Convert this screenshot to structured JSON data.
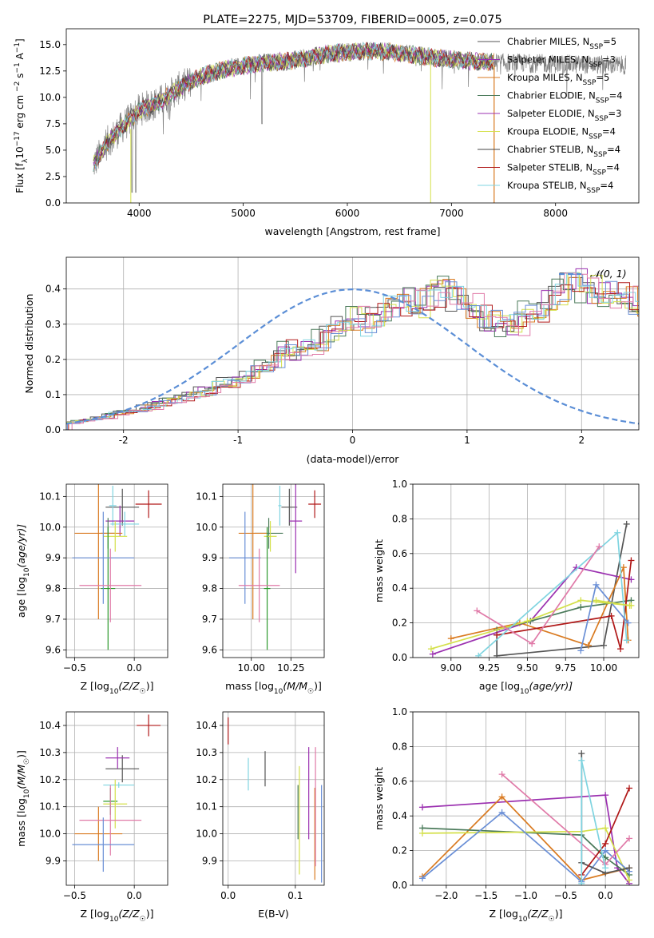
{
  "chart_data": [
    {
      "id": "spectrum",
      "type": "line",
      "title": "PLATE=2275, MJD=53709, FIBERID=0005, z=0.075",
      "xlabel": "wavelength [Angstrom, rest frame]",
      "ylabel": "Flux [f",
      "ylabel_sub": "λ",
      "ylabel_rest": "10",
      "ylabel_sup": "−17",
      "ylabel_units": "erg cm",
      "ylabel_units_sup": "−2",
      "ylabel_s": "s",
      "ylabel_s_sup": "−1",
      "ylabel_A": "A",
      "ylabel_A_sup": "−1",
      "ylabel_end": "]",
      "xlim": [
        3300,
        8800
      ],
      "ylim": [
        0,
        16.5
      ],
      "xticks": [
        4000,
        5000,
        6000,
        7000,
        8000
      ],
      "yticks": [
        0.0,
        2.5,
        5.0,
        7.5,
        10.0,
        12.5,
        15.0
      ],
      "continuum": [
        [
          3560,
          3.6
        ],
        [
          3700,
          5.8
        ],
        [
          3900,
          7.8
        ],
        [
          4000,
          8.8
        ],
        [
          4200,
          9.6
        ],
        [
          4400,
          11.0
        ],
        [
          4600,
          12.0
        ],
        [
          4800,
          12.6
        ],
        [
          5000,
          13.0
        ],
        [
          5200,
          13.3
        ],
        [
          5400,
          13.4
        ],
        [
          5600,
          13.7
        ],
        [
          5800,
          14.1
        ],
        [
          6000,
          14.3
        ],
        [
          6200,
          14.4
        ],
        [
          6400,
          14.3
        ],
        [
          6600,
          14.1
        ],
        [
          6800,
          13.8
        ],
        [
          7000,
          13.6
        ],
        [
          7200,
          13.4
        ],
        [
          7400,
          13.3
        ]
      ],
      "data_end_x": 8680,
      "legend": [
        {
          "label": "Chabrier MILES, N",
          "sub": "SSP",
          "suffix": "=5",
          "color": "#555555"
        },
        {
          "label": "Salpeter MILES, N",
          "sub": "SSP",
          "suffix": "=3",
          "color": "#9b30b0"
        },
        {
          "label": "Kroupa MILES, N",
          "sub": "SSP",
          "suffix": "=5",
          "color": "#d97a20"
        },
        {
          "label": "Chabrier ELODIE, N",
          "sub": "SSP",
          "suffix": "=4",
          "color": "#4a7a5a"
        },
        {
          "label": "Salpeter ELODIE, N",
          "sub": "SSP",
          "suffix": "=3",
          "color": "#9b30b0"
        },
        {
          "label": "Kroupa ELODIE, N",
          "sub": "SSP",
          "suffix": "=4",
          "color": "#d4e04a"
        },
        {
          "label": "Chabrier STELIB, N",
          "sub": "SSP",
          "suffix": "=4",
          "color": "#444444"
        },
        {
          "label": "Salpeter STELIB, N",
          "sub": "SSP",
          "suffix": "=4",
          "color": "#b01818"
        },
        {
          "label": "Kroupa STELIB, N",
          "sub": "SSP",
          "suffix": "=4",
          "color": "#7fd4e0"
        }
      ]
    },
    {
      "id": "residuals",
      "type": "area",
      "xlabel": "(data-model)/error",
      "ylabel": "Normed distribution",
      "xlim": [
        -2.5,
        2.5
      ],
      "ylim": [
        0,
        0.49
      ],
      "xticks": [
        -2,
        -1,
        0,
        1,
        2
      ],
      "yticks": [
        0.0,
        0.1,
        0.2,
        0.3,
        0.4
      ],
      "legend_label": "𝒩(0, 1)",
      "bin_width": 0.1,
      "hist_base": [
        0.02,
        0.025,
        0.03,
        0.035,
        0.045,
        0.05,
        0.055,
        0.065,
        0.075,
        0.085,
        0.09,
        0.1,
        0.11,
        0.125,
        0.135,
        0.15,
        0.165,
        0.18,
        0.2,
        0.23,
        0.22,
        0.24,
        0.255,
        0.27,
        0.3,
        0.32,
        0.3,
        0.33,
        0.34,
        0.35,
        0.37,
        0.36,
        0.38,
        0.39,
        0.37,
        0.35,
        0.32,
        0.31,
        0.29,
        0.3,
        0.33,
        0.34,
        0.36,
        0.4,
        0.42,
        0.41,
        0.4,
        0.38,
        0.39,
        0.37,
        0.36,
        0.34,
        0.33,
        0.31,
        0.3,
        0.29,
        0.27,
        0.25,
        0.24,
        0.2,
        0.18,
        0.19,
        0.16,
        0.15,
        0.14,
        0.125,
        0.11,
        0.1,
        0.085,
        0.075,
        0.07,
        0.065,
        0.06,
        0.055,
        0.05,
        0.045,
        0.04,
        0.035,
        0.03,
        0.03
      ]
    },
    {
      "id": "age_vs_Z",
      "type": "scatter",
      "xlabel": "Z [log",
      "xlabel_sub": "10",
      "xlabel_end": "(Z/Z",
      "xlabel_sun": "☉",
      "xlabel_close": ")]",
      "ylabel": "age  [log",
      "ylabel_sub": "10",
      "ylabel_end": "(age/yr)]",
      "xlim": [
        -0.57,
        0.28
      ],
      "ylim": [
        9.575,
        10.14
      ],
      "xticks": [
        -0.5,
        0.0
      ],
      "xtick_labels": [
        "−0.5",
        "0.0"
      ],
      "yticks": [
        9.6,
        9.7,
        9.8,
        9.9,
        10.0,
        10.1
      ],
      "points": [
        {
          "x": 0.12,
          "y": 10.075,
          "xe": 0.11,
          "ye": 0.045,
          "color": "#b01818"
        },
        {
          "x": -0.1,
          "y": 10.065,
          "xe": 0.14,
          "ye": 0.06,
          "color": "#555555"
        },
        {
          "x": -0.18,
          "y": 10.07,
          "xe": 0.03,
          "ye": 0.065,
          "color": "#7fd4e0"
        },
        {
          "x": -0.12,
          "y": 10.02,
          "xe": 0.12,
          "ye": 0.05,
          "color": "#9b30b0"
        },
        {
          "x": -0.08,
          "y": 10.01,
          "xe": 0.12,
          "ye": 0.04,
          "color": "#7fd4e0"
        },
        {
          "x": -0.22,
          "y": 9.98,
          "xe": 0.06,
          "ye": 0.05,
          "color": "#4a7a5a"
        },
        {
          "x": -0.3,
          "y": 9.98,
          "xe": 0.2,
          "ye": 0.28,
          "color": "#d97a20"
        },
        {
          "x": -0.16,
          "y": 9.97,
          "xe": 0.1,
          "ye": 0.05,
          "color": "#d4e04a"
        },
        {
          "x": -0.22,
          "y": 9.8,
          "xe": 0.06,
          "ye": 0.2,
          "color": "#2e9a2e"
        },
        {
          "x": -0.26,
          "y": 9.9,
          "xe": 0.26,
          "ye": 0.15,
          "color": "#6a8fd6"
        },
        {
          "x": -0.2,
          "y": 9.81,
          "xe": 0.26,
          "ye": 0.12,
          "color": "#e07aa8"
        }
      ]
    },
    {
      "id": "age_vs_mass",
      "type": "scatter",
      "xlabel": "mass [log",
      "xlabel_sub": "10",
      "xlabel_end": "(M/M",
      "xlabel_sun": "☉",
      "xlabel_close": ")]",
      "xlim": [
        9.82,
        10.46
      ],
      "ylim": [
        9.575,
        10.14
      ],
      "xticks": [
        10.0,
        10.25
      ],
      "xtick_labels": [
        "10.00",
        "10.25"
      ],
      "yticks": [
        9.6,
        9.7,
        9.8,
        9.9,
        10.0,
        10.1
      ],
      "points": [
        {
          "x": 10.4,
          "y": 10.075,
          "xe": 0.04,
          "ye": 0.045,
          "color": "#b01818"
        },
        {
          "x": 10.24,
          "y": 10.065,
          "xe": 0.05,
          "ye": 0.06,
          "color": "#555555"
        },
        {
          "x": 10.18,
          "y": 10.07,
          "xe": 0.01,
          "ye": 0.065,
          "color": "#7fd4e0"
        },
        {
          "x": 10.28,
          "y": 10.02,
          "xe": 0.04,
          "ye": 0.17,
          "color": "#9b30b0"
        },
        {
          "x": 10.11,
          "y": 9.98,
          "xe": 0.09,
          "ye": 0.05,
          "color": "#4a7a5a"
        },
        {
          "x": 10.01,
          "y": 9.98,
          "xe": 0.09,
          "ye": 0.28,
          "color": "#d97a20"
        },
        {
          "x": 10.12,
          "y": 9.97,
          "xe": 0.04,
          "ye": 0.05,
          "color": "#d4e04a"
        },
        {
          "x": 10.1,
          "y": 9.8,
          "xe": 0.02,
          "ye": 0.2,
          "color": "#2e9a2e"
        },
        {
          "x": 9.96,
          "y": 9.9,
          "xe": 0.1,
          "ye": 0.15,
          "color": "#6a8fd6"
        },
        {
          "x": 10.05,
          "y": 9.81,
          "xe": 0.13,
          "ye": 0.12,
          "color": "#e07aa8"
        }
      ]
    },
    {
      "id": "weight_vs_age",
      "type": "line",
      "xlabel": "age  [log",
      "xlabel_sub": "10",
      "xlabel_end": "(age/yr)]",
      "ylabel": "mass weight",
      "xlim": [
        8.75,
        10.23
      ],
      "ylim": [
        0,
        1.0
      ],
      "xticks": [
        9.0,
        9.25,
        9.5,
        9.75,
        10.0
      ],
      "xtick_labels": [
        "9.00",
        "9.25",
        "9.50",
        "9.75",
        "10.00"
      ],
      "yticks": [
        0.0,
        0.2,
        0.4,
        0.6,
        0.8,
        1.0
      ],
      "series": [
        {
          "color": "#555555",
          "points": [
            [
              9.3,
              0.13
            ],
            [
              9.3,
              0.01
            ],
            [
              10.0,
              0.07
            ],
            [
              10.15,
              0.77
            ]
          ]
        },
        {
          "color": "#9b30b0",
          "points": [
            [
              8.88,
              0.02
            ],
            [
              9.52,
              0.21
            ],
            [
              9.82,
              0.52
            ],
            [
              10.18,
              0.45
            ]
          ]
        },
        {
          "color": "#d97a20",
          "points": [
            [
              9.0,
              0.11
            ],
            [
              9.45,
              0.2
            ],
            [
              9.9,
              0.07
            ],
            [
              10.13,
              0.52
            ],
            [
              10.16,
              0.1
            ]
          ]
        },
        {
          "color": "#4a7a5a",
          "points": [
            [
              9.3,
              0.16
            ],
            [
              9.52,
              0.21
            ],
            [
              9.85,
              0.29
            ],
            [
              10.18,
              0.33
            ]
          ]
        },
        {
          "color": "#d4e04a",
          "points": [
            [
              8.87,
              0.05
            ],
            [
              9.5,
              0.21
            ],
            [
              9.85,
              0.33
            ],
            [
              10.18,
              0.3
            ]
          ]
        },
        {
          "color": "#b01818",
          "points": [
            [
              9.3,
              0.13
            ],
            [
              10.05,
              0.24
            ],
            [
              10.11,
              0.05
            ],
            [
              10.18,
              0.56
            ]
          ]
        },
        {
          "color": "#7fd4e0",
          "points": [
            [
              9.18,
              0.01
            ],
            [
              10.09,
              0.72
            ],
            [
              10.15,
              0.1
            ]
          ]
        },
        {
          "color": "#6a8fd6",
          "points": [
            [
              9.85,
              0.04
            ],
            [
              9.95,
              0.42
            ],
            [
              10.16,
              0.2
            ]
          ]
        },
        {
          "color": "#e07aa8",
          "points": [
            [
              9.17,
              0.27
            ],
            [
              9.53,
              0.08
            ],
            [
              9.97,
              0.64
            ]
          ]
        },
        {
          "color": "#d4e04a",
          "points": [
            [
              9.95,
              0.33
            ],
            [
              10.17,
              0.3
            ]
          ]
        }
      ]
    },
    {
      "id": "mass_vs_Z",
      "type": "scatter",
      "xlabel": "Z [log",
      "xlabel_sub": "10",
      "xlabel_end": "(Z/Z",
      "xlabel_sun": "☉",
      "xlabel_close": ")]",
      "ylabel": "mass [log",
      "ylabel_sub": "10",
      "ylabel_end": "(M/M",
      "ylabel_sun": "☉",
      "ylabel_close": ")]",
      "xlim": [
        -0.57,
        0.28
      ],
      "ylim": [
        9.81,
        10.45
      ],
      "xticks": [
        -0.5,
        0.0
      ],
      "xtick_labels": [
        "−0.5",
        "0.0"
      ],
      "yticks": [
        9.9,
        10.0,
        10.1,
        10.2,
        10.3,
        10.4
      ],
      "points": [
        {
          "x": 0.12,
          "y": 10.4,
          "xe": 0.1,
          "ye": 0.04,
          "color": "#b01818"
        },
        {
          "x": -0.1,
          "y": 10.24,
          "xe": 0.14,
          "ye": 0.05,
          "color": "#555555"
        },
        {
          "x": -0.14,
          "y": 10.28,
          "xe": 0.1,
          "ye": 0.04,
          "color": "#9b30b0"
        },
        {
          "x": -0.13,
          "y": 10.18,
          "xe": 0.13,
          "ye": 0.01,
          "color": "#7fd4e0"
        },
        {
          "x": -0.2,
          "y": 10.12,
          "xe": 0.06,
          "ye": 0.05,
          "color": "#2e9a2e"
        },
        {
          "x": -0.16,
          "y": 10.11,
          "xe": 0.1,
          "ye": 0.09,
          "color": "#d4e04a"
        },
        {
          "x": -0.3,
          "y": 10.0,
          "xe": 0.2,
          "ye": 0.1,
          "color": "#d97a20"
        },
        {
          "x": -0.2,
          "y": 10.05,
          "xe": 0.26,
          "ye": 0.13,
          "color": "#e07aa8"
        },
        {
          "x": -0.26,
          "y": 9.96,
          "xe": 0.26,
          "ye": 0.1,
          "color": "#6a8fd6"
        }
      ]
    },
    {
      "id": "mass_vs_ebv",
      "type": "scatter",
      "xlabel": "E(B-V)",
      "xlim": [
        -0.008,
        0.143
      ],
      "ylim": [
        9.81,
        10.45
      ],
      "xticks": [
        0.0,
        0.1
      ],
      "xtick_labels": [
        "0.0",
        "0.1"
      ],
      "yticks": [
        9.9,
        10.0,
        10.1,
        10.2,
        10.3,
        10.4
      ],
      "points": [
        {
          "x": 0.0,
          "y": 10.38,
          "ye": 0.05,
          "color": "#b01818"
        },
        {
          "x": 0.03,
          "y": 10.22,
          "ye": 0.06,
          "color": "#7fd4e0"
        },
        {
          "x": 0.055,
          "y": 10.24,
          "ye": 0.065,
          "color": "#555555"
        },
        {
          "x": 0.104,
          "y": 10.08,
          "ye": 0.1,
          "color": "#4a7a5a"
        },
        {
          "x": 0.106,
          "y": 10.05,
          "ye": 0.2,
          "color": "#d4e04a"
        },
        {
          "x": 0.12,
          "y": 10.15,
          "ye": 0.17,
          "color": "#9b30b0"
        },
        {
          "x": 0.129,
          "y": 10.0,
          "ye": 0.17,
          "color": "#d97a20"
        },
        {
          "x": 0.13,
          "y": 10.1,
          "ye": 0.22,
          "color": "#e07aa8"
        },
        {
          "x": 0.139,
          "y": 10.0,
          "ye": 0.18,
          "color": "#6a8fd6"
        }
      ]
    },
    {
      "id": "weight_vs_Z",
      "type": "line",
      "xlabel": "Z [log",
      "xlabel_sub": "10",
      "xlabel_end": "(Z/Z",
      "xlabel_sun": "☉",
      "xlabel_close": ")]",
      "ylabel": "mass weight",
      "xlim": [
        -2.42,
        0.42
      ],
      "ylim": [
        0,
        1.0
      ],
      "xticks": [
        -2.0,
        -1.5,
        -1.0,
        -0.5,
        0.0
      ],
      "xtick_labels": [
        "−2.0",
        "−1.5",
        "−1.0",
        "−0.5",
        "0.0"
      ],
      "yticks": [
        0.0,
        0.2,
        0.4,
        0.6,
        0.8,
        1.0
      ],
      "series": [
        {
          "color": "#9b30b0",
          "points": [
            [
              -2.3,
              0.45
            ],
            [
              0.0,
              0.52
            ],
            [
              0.15,
              0.1
            ],
            [
              0.3,
              0.01
            ]
          ]
        },
        {
          "color": "#d97a20",
          "points": [
            [
              -2.3,
              0.05
            ],
            [
              -1.3,
              0.51
            ],
            [
              -0.3,
              0.03
            ],
            [
              0.3,
              0.1
            ]
          ]
        },
        {
          "color": "#4a7a5a",
          "points": [
            [
              -2.3,
              0.33
            ],
            [
              -0.3,
              0.29
            ],
            [
              0.0,
              0.16
            ],
            [
              0.3,
              0.06
            ]
          ]
        },
        {
          "color": "#d4e04a",
          "points": [
            [
              -2.3,
              0.3
            ],
            [
              -0.3,
              0.31
            ],
            [
              0.0,
              0.33
            ],
            [
              0.3,
              0.03
            ]
          ]
        },
        {
          "color": "#6a8fd6",
          "points": [
            [
              -2.3,
              0.04
            ],
            [
              -1.3,
              0.42
            ],
            [
              -0.3,
              0.02
            ],
            [
              0.0,
              0.2
            ],
            [
              0.3,
              0.08
            ]
          ]
        },
        {
          "color": "#e07aa8",
          "points": [
            [
              -1.3,
              0.64
            ],
            [
              0.0,
              0.12
            ],
            [
              0.3,
              0.27
            ]
          ]
        },
        {
          "color": "#555555",
          "points": [
            [
              -0.3,
              0.76
            ],
            [
              -0.3,
              0.13
            ],
            [
              0.0,
              0.07
            ],
            [
              0.3,
              0.1
            ]
          ]
        },
        {
          "color": "#b01818",
          "points": [
            [
              -0.3,
              0.06
            ],
            [
              0.0,
              0.24
            ],
            [
              0.3,
              0.56
            ]
          ]
        },
        {
          "color": "#7fd4e0",
          "points": [
            [
              -0.3,
              0.01
            ],
            [
              -0.3,
              0.72
            ],
            [
              0.0,
              0.1
            ]
          ]
        }
      ]
    }
  ]
}
